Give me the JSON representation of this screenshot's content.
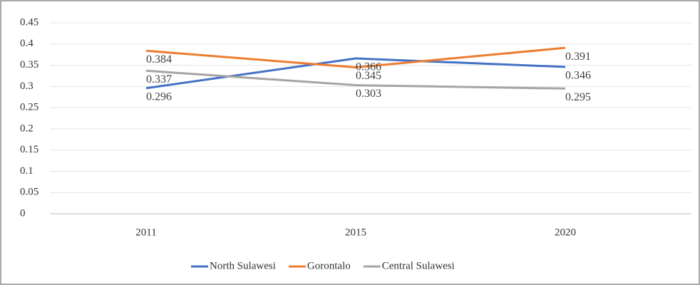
{
  "chart_data": {
    "type": "line",
    "categories": [
      "2011",
      "2015",
      "2020"
    ],
    "series": [
      {
        "name": "North Sulawesi",
        "color": "#4472c4",
        "values": [
          0.296,
          0.366,
          0.346
        ]
      },
      {
        "name": "Gorontalo",
        "color": "#ed7d31",
        "values": [
          0.384,
          0.345,
          0.391
        ]
      },
      {
        "name": "Central Sulawesi",
        "color": "#a5a5a5",
        "values": [
          0.337,
          0.303,
          0.295
        ]
      }
    ],
    "ylim": [
      0,
      0.45
    ],
    "yticks": [
      0,
      0.05,
      0.1,
      0.15,
      0.2,
      0.25,
      0.3,
      0.35,
      0.4,
      0.45
    ],
    "grid": true,
    "legend": "bottom"
  }
}
